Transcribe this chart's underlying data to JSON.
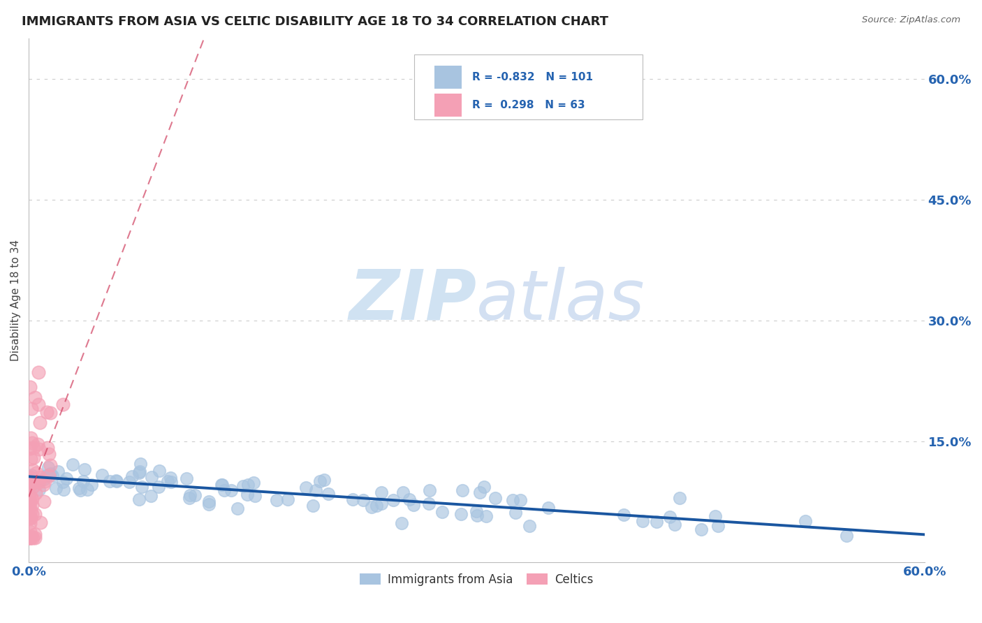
{
  "title": "IMMIGRANTS FROM ASIA VS CELTIC DISABILITY AGE 18 TO 34 CORRELATION CHART",
  "source": "Source: ZipAtlas.com",
  "xlabel": "",
  "ylabel": "Disability Age 18 to 34",
  "xlim": [
    0.0,
    0.6
  ],
  "ylim": [
    0.0,
    0.65
  ],
  "xtick_labels": [
    "0.0%",
    "60.0%"
  ],
  "ytick_labels_right": [
    "15.0%",
    "30.0%",
    "45.0%",
    "60.0%"
  ],
  "ytick_values_right": [
    0.15,
    0.3,
    0.45,
    0.6
  ],
  "series_blue": {
    "name": "Immigrants from Asia",
    "R": -0.832,
    "N": 101,
    "color": "#a8c4e0",
    "trend_color": "#1a56a0",
    "alpha": 0.65
  },
  "series_pink": {
    "name": "Celtics",
    "R": 0.298,
    "N": 63,
    "color": "#f4a0b5",
    "trend_color": "#d04060",
    "alpha": 0.65
  },
  "legend_R_color": "#2563b0",
  "watermark_zip_color": "#c8ddf0",
  "watermark_atlas_color": "#b0c8e8",
  "background_color": "#ffffff",
  "grid_color": "#cccccc"
}
